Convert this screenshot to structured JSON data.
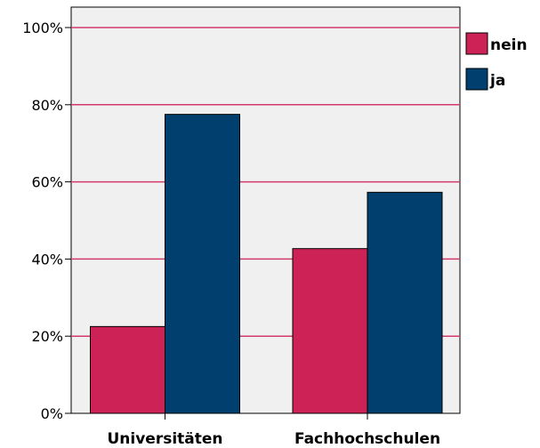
{
  "chart_data": {
    "type": "bar",
    "categories": [
      "Universitäten",
      "Fachhochschulen"
    ],
    "series": [
      {
        "name": "nein",
        "values": [
          22.5,
          42.7
        ],
        "color": "#cc2255"
      },
      {
        "name": "ja",
        "values": [
          77.5,
          57.3
        ],
        "color": "#003f6e"
      }
    ],
    "y_ticks": [
      "0%",
      "20%",
      "40%",
      "60%",
      "80%",
      "100%"
    ],
    "ylim": [
      0,
      100
    ],
    "grid": true,
    "grid_color": "#d23a6a",
    "plot_background": "#f0f0f0",
    "legend_position": "top-right",
    "title": "",
    "xlabel": "",
    "ylabel": ""
  }
}
